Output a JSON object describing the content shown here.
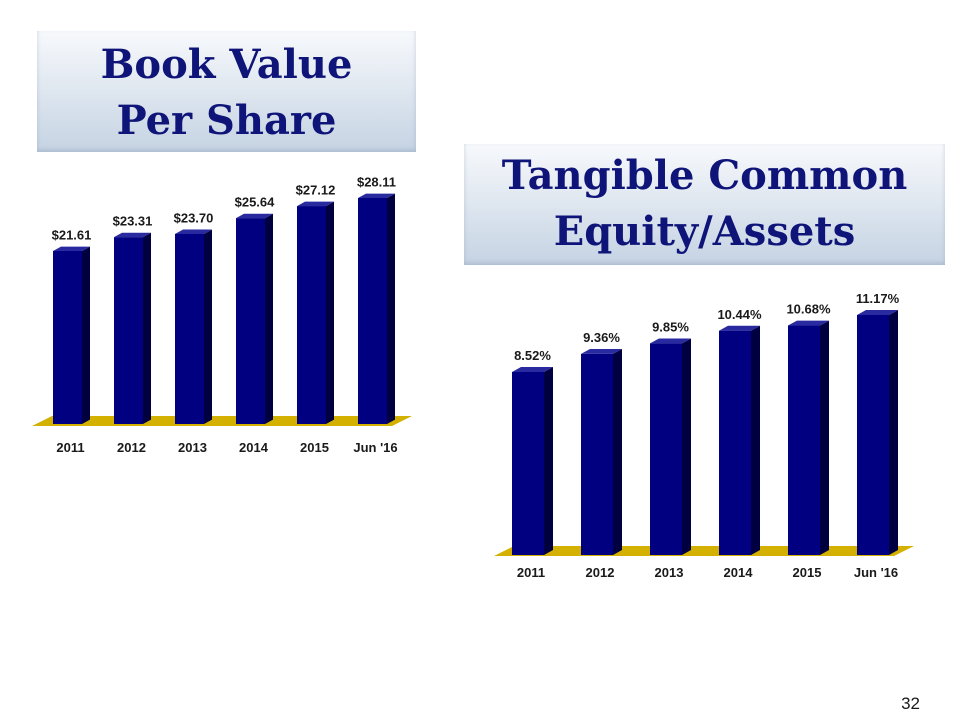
{
  "titles": {
    "book_value": [
      "Book Value",
      "Per Share"
    ],
    "tce": [
      "Tangible Common",
      "Equity/Assets"
    ]
  },
  "page_number": "32",
  "colors": {
    "bar_front": "#000080",
    "bar_side": "#000040",
    "bar_top": "#2a2aa0",
    "floor": "#d4b000",
    "title_text": "#0e1478"
  },
  "chart_data": [
    {
      "type": "bar",
      "title": "Book Value Per Share",
      "categories": [
        "2011",
        "2012",
        "2013",
        "2014",
        "2015",
        "Jun '16"
      ],
      "values": [
        21.61,
        23.31,
        23.7,
        25.64,
        27.12,
        28.11
      ],
      "labels": [
        "$21.61",
        "$23.31",
        "$23.70",
        "$25.64",
        "$27.12",
        "$28.11"
      ],
      "xlabel": "",
      "ylabel": "",
      "grid": false,
      "legend": "none"
    },
    {
      "type": "bar",
      "title": "Tangible Common Equity/Assets",
      "categories": [
        "2011",
        "2012",
        "2013",
        "2014",
        "2015",
        "Jun '16"
      ],
      "values": [
        8.52,
        9.36,
        9.85,
        10.44,
        10.68,
        11.17
      ],
      "labels": [
        "8.52%",
        "9.36%",
        "9.85%",
        "10.44%",
        "10.68%",
        "11.17%"
      ],
      "xlabel": "",
      "ylabel": "",
      "grid": false,
      "legend": "none"
    }
  ]
}
